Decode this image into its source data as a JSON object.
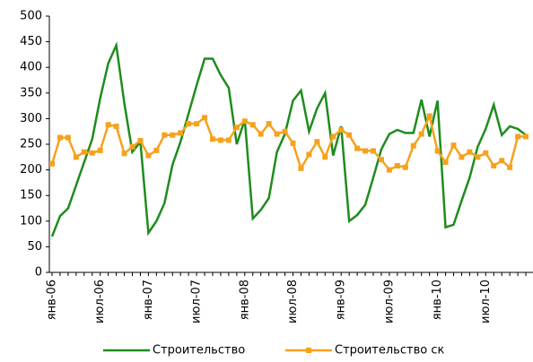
{
  "chart_data": {
    "type": "line",
    "categories": [
      "янв-06",
      null,
      null,
      null,
      null,
      null,
      "июл-06",
      null,
      null,
      null,
      null,
      null,
      "янв-07",
      null,
      null,
      null,
      null,
      null,
      "июл-07",
      null,
      null,
      null,
      null,
      null,
      "янв-08",
      null,
      null,
      null,
      null,
      null,
      "июл-08",
      null,
      null,
      null,
      null,
      null,
      "янв-09",
      null,
      null,
      null,
      null,
      null,
      "июл-09",
      null,
      null,
      null,
      null,
      null,
      "янв-10",
      null,
      null,
      null,
      null,
      null,
      "июл-10",
      null,
      null,
      null,
      null,
      null
    ],
    "series": [
      {
        "name": "Строительство",
        "color": "#1e8c1e",
        "marker": false,
        "values": [
          70,
          110,
          125,
          170,
          215,
          260,
          340,
          408,
          443,
          330,
          235,
          255,
          77,
          100,
          135,
          210,
          255,
          310,
          365,
          417,
          417,
          385,
          360,
          250,
          298,
          105,
          122,
          145,
          235,
          270,
          335,
          355,
          275,
          320,
          350,
          228,
          285,
          100,
          112,
          132,
          185,
          240,
          270,
          278,
          272,
          272,
          337,
          265,
          335,
          88,
          93,
          140,
          185,
          245,
          280,
          327,
          268,
          285,
          280,
          268
        ]
      },
      {
        "name": "Строительство ск",
        "color": "#f5a21e",
        "marker": true,
        "values": [
          212,
          263,
          263,
          225,
          235,
          233,
          238,
          288,
          285,
          232,
          245,
          257,
          228,
          238,
          268,
          268,
          272,
          290,
          290,
          302,
          260,
          258,
          258,
          283,
          295,
          288,
          270,
          290,
          270,
          275,
          252,
          203,
          230,
          255,
          225,
          265,
          278,
          268,
          242,
          237,
          237,
          220,
          200,
          208,
          205,
          247,
          270,
          305,
          237,
          215,
          248,
          225,
          235,
          225,
          233,
          208,
          218,
          205,
          265,
          265
        ]
      }
    ],
    "ylim": [
      0,
      500
    ],
    "yticks": [
      0,
      50,
      100,
      150,
      200,
      250,
      300,
      350,
      400,
      450,
      500
    ],
    "legend": "bottom"
  }
}
